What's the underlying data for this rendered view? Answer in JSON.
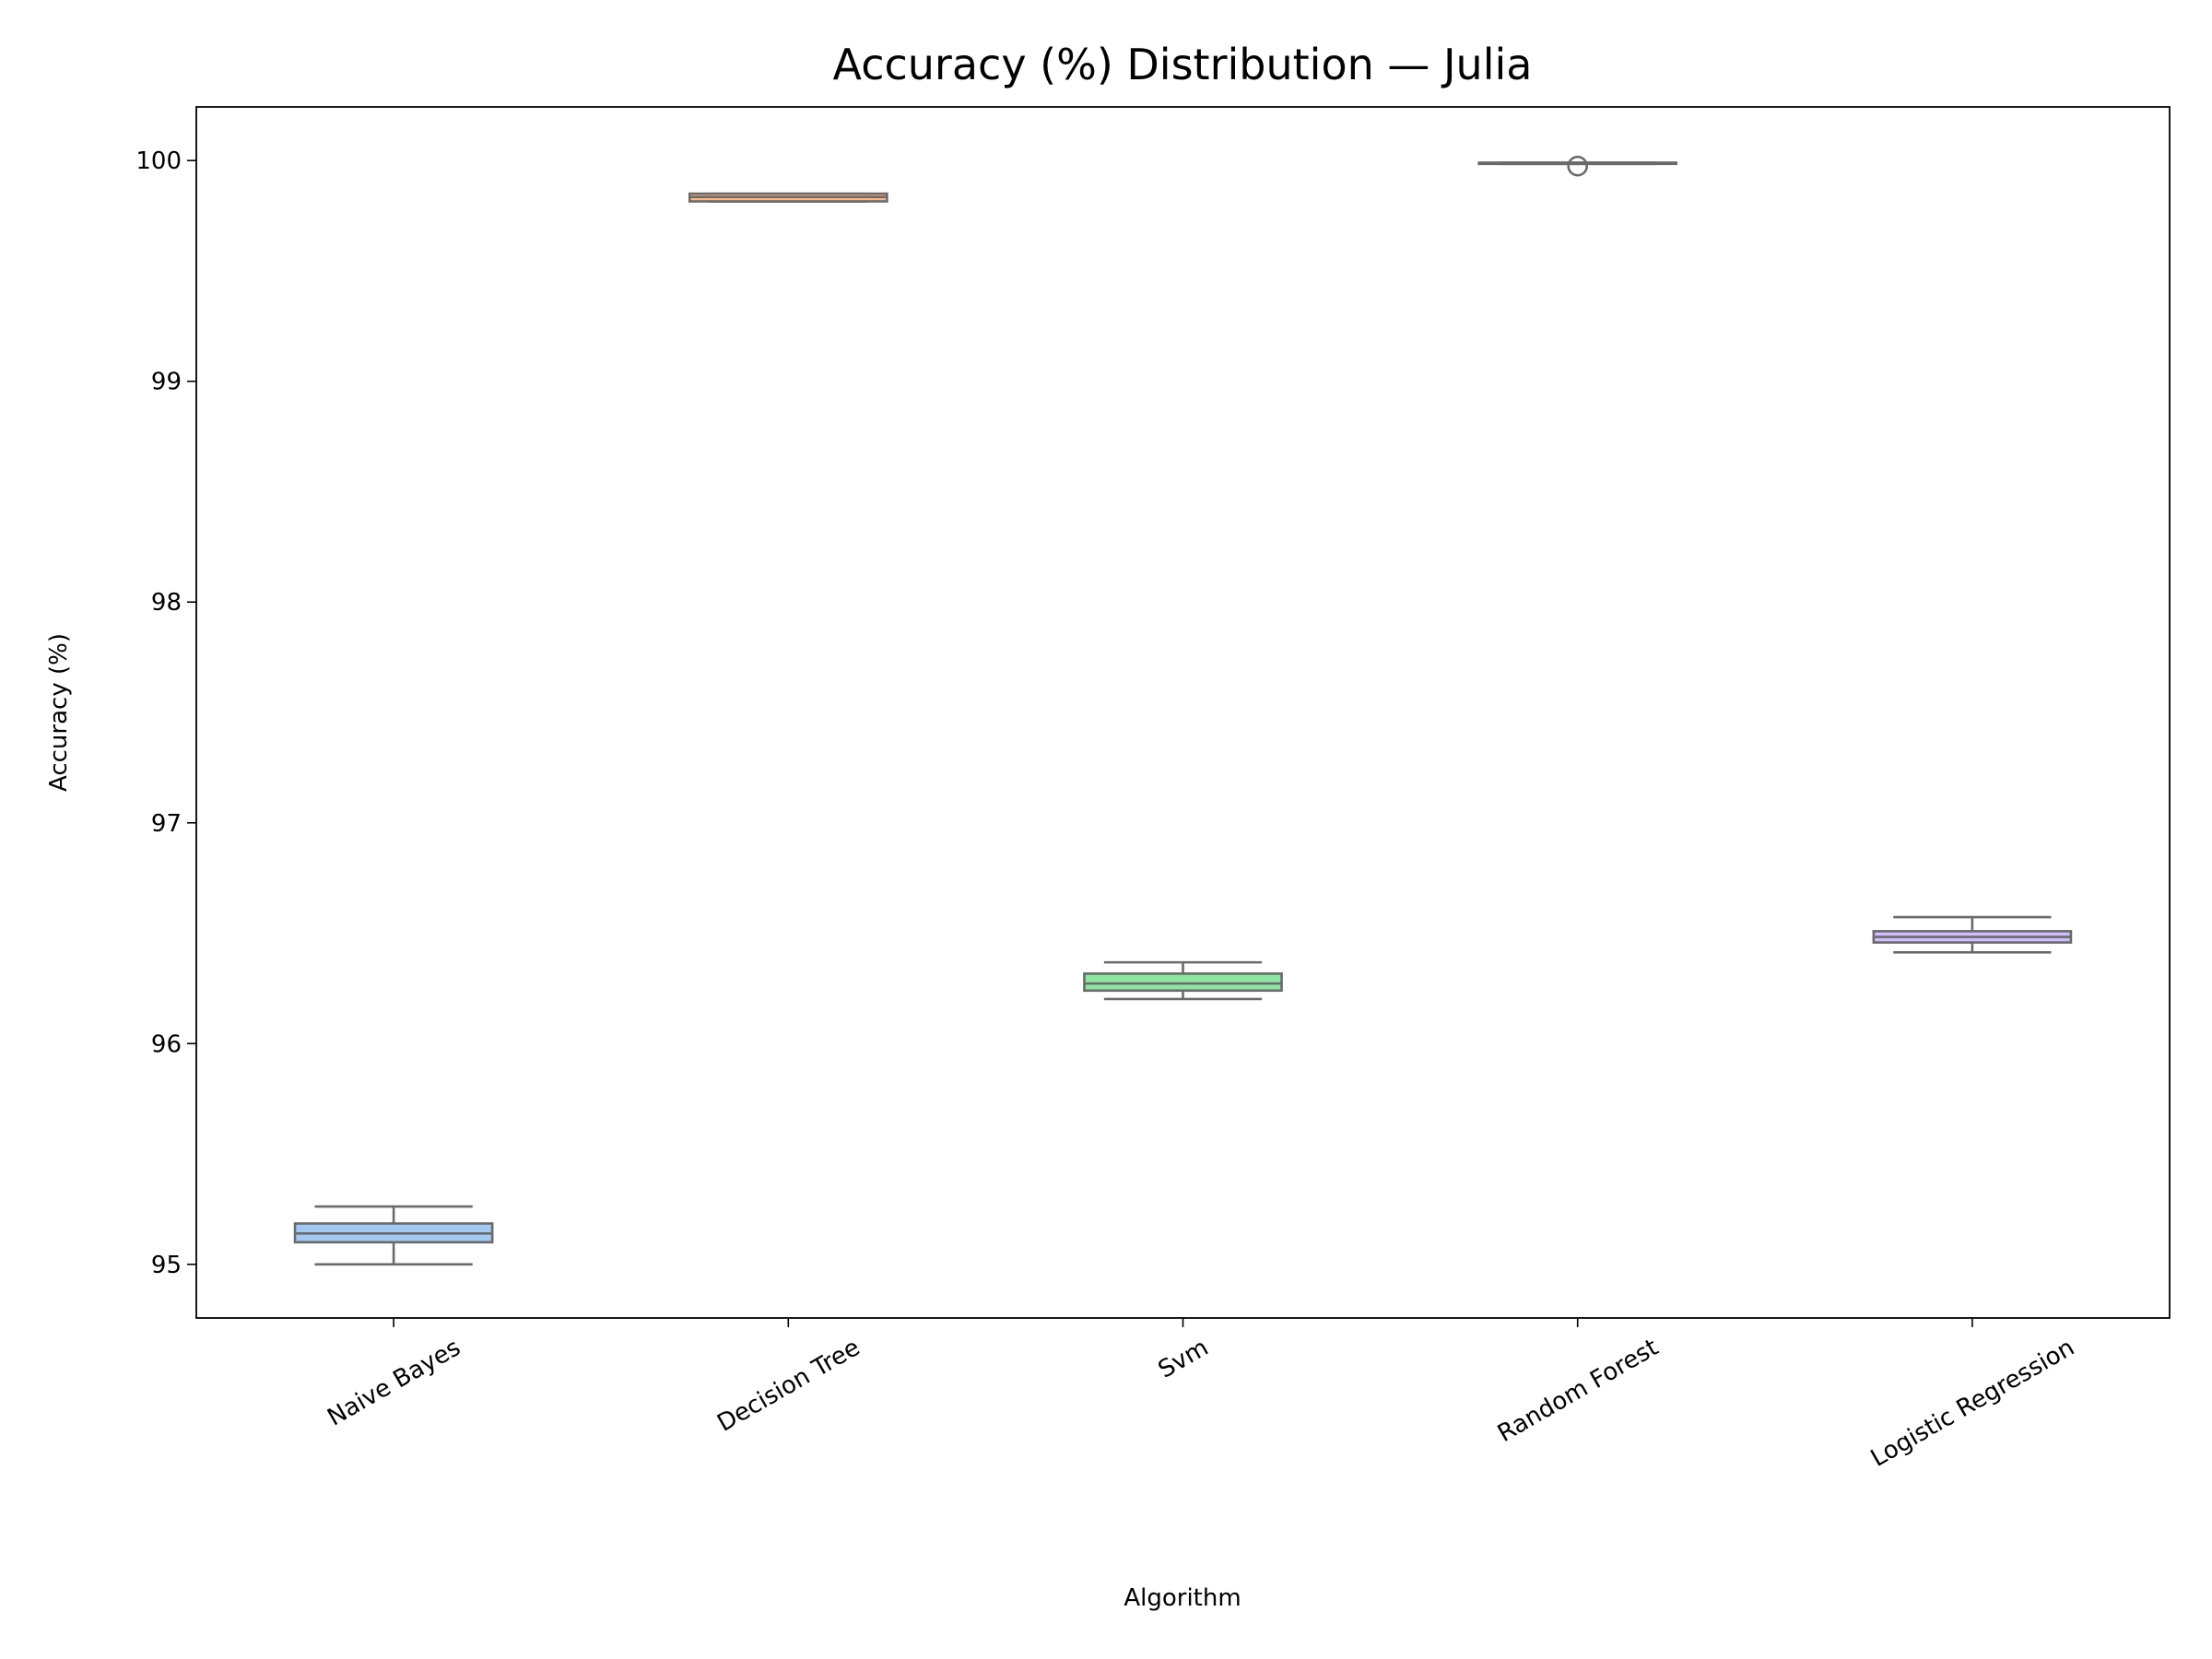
{
  "chart_data": {
    "type": "box",
    "title": "Accuracy (%) Distribution — Julia",
    "x_label": "Algorithm",
    "y_label": "Accuracy (%)",
    "categories": [
      "Naive Bayes",
      "Decision Tree",
      "Svm",
      "Random Forest",
      "Logistic Regression"
    ],
    "colors": [
      "#a1c9f4",
      "#ffb482",
      "#8de5a1",
      "#ff9f9b",
      "#d0bbff"
    ],
    "stats": [
      {
        "min": 95.0,
        "q1": 95.1,
        "median": 95.14,
        "q3": 95.185,
        "max": 95.262,
        "outliers": []
      },
      {
        "min": 99.815,
        "q1": 99.815,
        "median": 99.835,
        "q3": 99.85,
        "max": 99.85,
        "outliers": []
      },
      {
        "min": 96.202,
        "q1": 96.24,
        "median": 96.272,
        "q3": 96.317,
        "max": 96.368,
        "outliers": []
      },
      {
        "min": 99.985,
        "q1": 99.985,
        "median": 99.99,
        "q3": 99.99,
        "max": 99.99,
        "outliers": [
          99.975
        ]
      },
      {
        "min": 96.413,
        "q1": 96.458,
        "median": 96.483,
        "q3": 96.509,
        "max": 96.573,
        "outliers": []
      }
    ],
    "ylim": [
      94.757,
      100.243
    ],
    "yticks": [
      95,
      96,
      97,
      98,
      99,
      100
    ],
    "grid": false
  }
}
